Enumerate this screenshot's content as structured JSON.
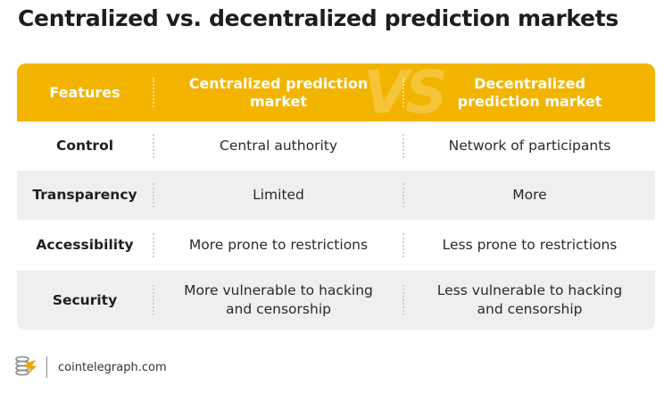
{
  "title": "Centralized vs. decentralized prediction markets",
  "header": {
    "features": "Features",
    "centralized": "Centralized prediction market",
    "decentralized": "Decentralized prediction market",
    "watermark": "VS"
  },
  "rows": [
    {
      "feature": "Control",
      "centralized": "Central authority",
      "decentralized": "Network of participants"
    },
    {
      "feature": "Transparency",
      "centralized": "Limited",
      "decentralized": "More"
    },
    {
      "feature": "Accessibility",
      "centralized": "More prone to restrictions",
      "decentralized": "Less prone to restrictions"
    },
    {
      "feature": "Security",
      "centralized": "More vulnerable to hacking and censorship",
      "decentralized": "Less vulnerable to hacking and censorship"
    }
  ],
  "footer": {
    "brand": "cointelegraph.com",
    "logo_icon": "cointelegraph-logo-icon"
  },
  "colors": {
    "header_bg": "#f3b400",
    "alt_row_bg": "#efefef",
    "logo_gold": "#e8a800",
    "logo_gray": "#8a8a8a"
  }
}
